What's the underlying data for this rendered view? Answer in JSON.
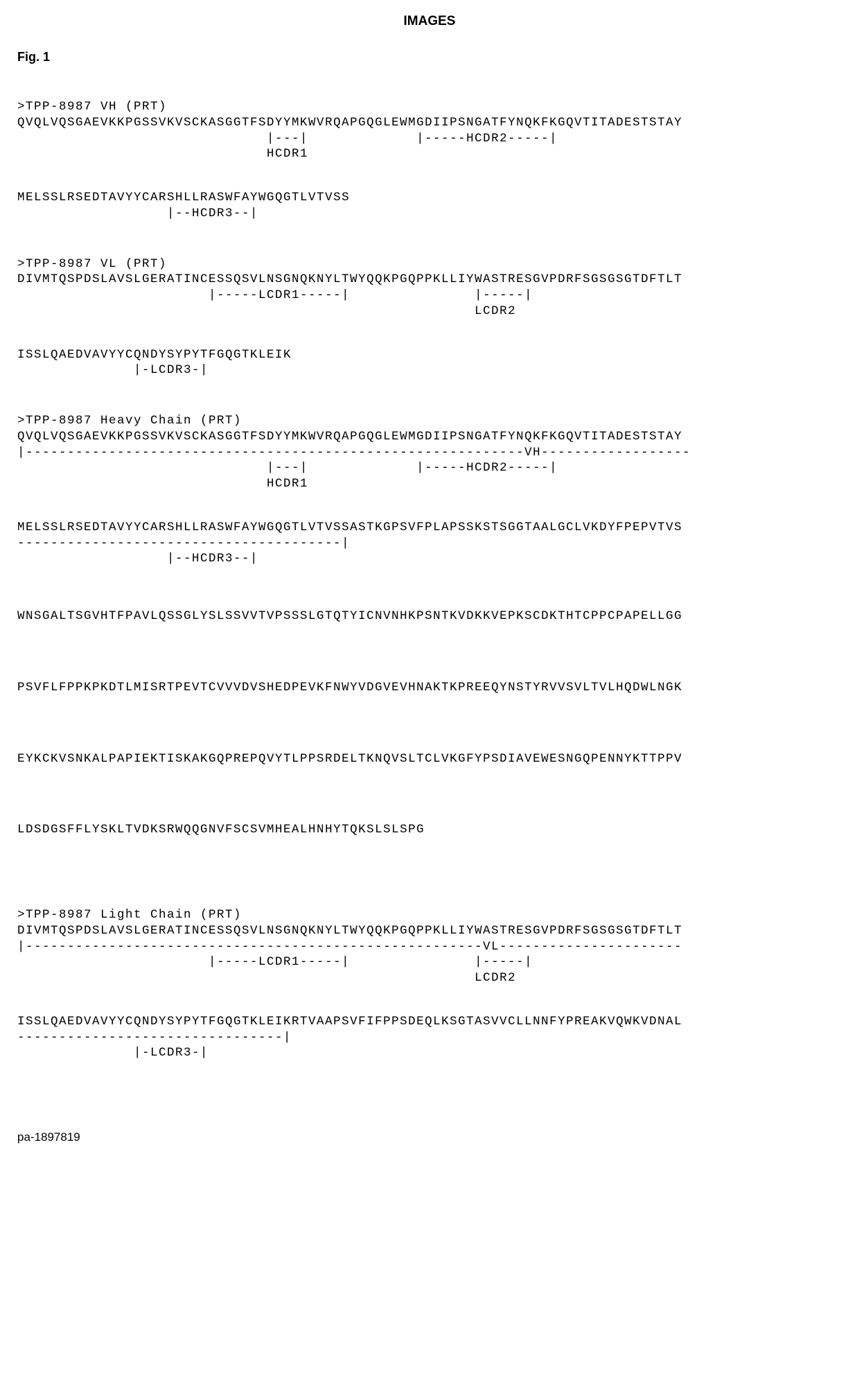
{
  "page_title": "IMAGES",
  "figure_label": "Fig. 1",
  "blocks": [
    {
      "header": ">TPP-8987 VH (PRT)",
      "lines": [
        "QVQLVQSGAEVKKPGSSVKVSCKASGGTFSDYYMKWVRQAPGQGLEWMGDIIPSNGATFYNQKFKGQVTITADESTSTAY",
        "                              |---|             |-----HCDR2-----|",
        "                              HCDR1"
      ]
    },
    {
      "header": "",
      "lines": [
        "MELSSLRSEDTAVYYCARSHLLRASWFAYWGQGTLVTVSS",
        "                  |--HCDR3--|"
      ]
    },
    {
      "header": ">TPP-8987 VL (PRT)",
      "lines": [
        "DIVMTQSPDSLAVSLGERATINCESSQSVLNSGNQKNYLTWYQQKPGQPPKLLIYWASTRESGVPDRFSGSGSGTDFTLT",
        "                       |-----LCDR1-----|               |-----|",
        "                                                       LCDR2"
      ]
    },
    {
      "header": "",
      "lines": [
        "ISSLQAEDVAVYYCQNDYSYPYTFGQGTKLEIK",
        "              |-LCDR3-|"
      ]
    },
    {
      "header": ">TPP-8987 Heavy Chain (PRT)",
      "lines": [
        "QVQLVQSGAEVKKPGSSVKVSCKASGGTFSDYYMKWVRQAPGQGLEWMGDIIPSNGATFYNQKFKGQVTITADESTSTAY",
        "|------------------------------------------------------------VH------------------",
        "                              |---|             |-----HCDR2-----|",
        "                              HCDR1"
      ]
    },
    {
      "header": "",
      "lines": [
        "MELSSLRSEDTAVYYCARSHLLRASWFAYWGQGTLVTVSSASTKGPSVFPLAPSSKSTSGGTAALGCLVKDYFPEPVTVS",
        "---------------------------------------|",
        "                  |--HCDR3--|"
      ]
    },
    {
      "header": "",
      "lines": [
        "WNSGALTSGVHTFPAVLQSSGLYSLSSVVTVPSSSLGTQTYICNVNHKPSNTKVDKKVEPKSCDKTHTCPPCPAPELLGG"
      ]
    },
    {
      "header": "",
      "lines": [
        "PSVFLFPPKPKDTLMISRTPEVTCVVVDVSHEDPEVKFNWYVDGVEVHNAKTKPREEQYNSTYRVVSVLTVLHQDWLNGK"
      ]
    },
    {
      "header": "",
      "lines": [
        "EYKCKVSNKALPAPIEKTISKAKGQPREPQVYTLPPSRDELTKNQVSLTCLVKGFYPSDIAVEWESNGQPENNYKTTPPV"
      ]
    },
    {
      "header": "",
      "lines": [
        "LDSDGSFFLYSKLTVDKSRWQQGNVFSCSVMHEALHNHYTQKSLSLSPG"
      ]
    },
    {
      "header": ">TPP-8987 Light Chain (PRT)",
      "lines": [
        "DIVMTQSPDSLAVSLGERATINCESSQSVLNSGNQKNYLTWYQQKPGQPPKLLIYWASTRESGVPDRFSGSGSGTDFTLT",
        "|-------------------------------------------------------VL----------------------",
        "                       |-----LCDR1-----|               |-----|",
        "                                                       LCDR2"
      ]
    },
    {
      "header": "",
      "lines": [
        "ISSLQAEDVAVYYCQNDYSYPYTFGQGTKLEIKRTVAAPSVFIFPPSDEQLKSGTASVVCLLNNFYPREAKVQWKVDNAL",
        "--------------------------------|",
        "              |-LCDR3-|"
      ]
    }
  ],
  "block_margins": [
    40,
    50,
    40,
    50,
    40,
    60,
    80,
    80,
    80,
    100,
    40,
    40
  ],
  "footer": "pa-1897819"
}
